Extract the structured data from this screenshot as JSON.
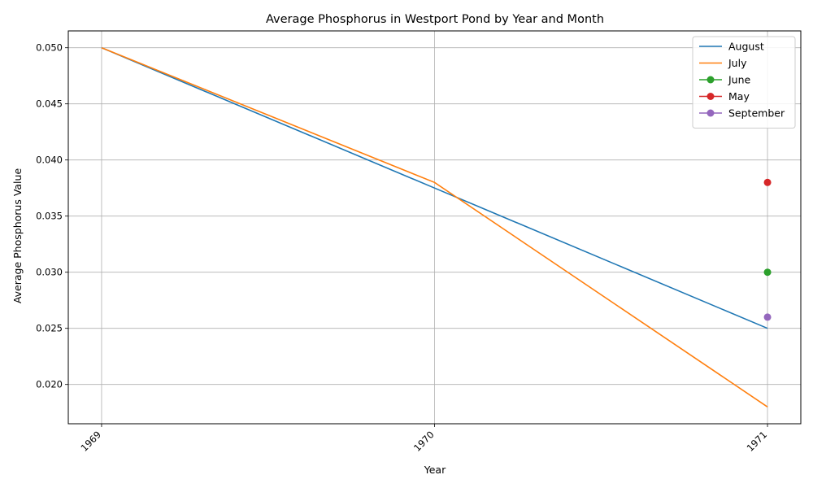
{
  "chart_data": {
    "type": "line",
    "title": "Average Phosphorus in Westport Pond by Year and Month",
    "xlabel": "Year",
    "ylabel": "Average Phosphorus Value",
    "x_ticks": [
      "1969",
      "1970",
      "1971"
    ],
    "y_ticks": [
      "0.020",
      "0.025",
      "0.030",
      "0.035",
      "0.040",
      "0.045",
      "0.050"
    ],
    "xlim": [
      1968.9,
      1971.1
    ],
    "ylim": [
      0.0165,
      0.0515
    ],
    "grid": true,
    "legend_position": "top-right",
    "series": [
      {
        "name": "August",
        "color": "#1f77b4",
        "marker": false,
        "x": [
          1969,
          1970,
          1971
        ],
        "y": [
          0.05,
          0.0375,
          0.025
        ]
      },
      {
        "name": "July",
        "color": "#ff7f0e",
        "marker": false,
        "x": [
          1969,
          1970,
          1971
        ],
        "y": [
          0.05,
          0.038,
          0.018
        ]
      },
      {
        "name": "June",
        "color": "#2ca02c",
        "marker": true,
        "x": [
          1971
        ],
        "y": [
          0.03
        ]
      },
      {
        "name": "May",
        "color": "#d62728",
        "marker": true,
        "x": [
          1971
        ],
        "y": [
          0.038
        ]
      },
      {
        "name": "September",
        "color": "#9467bd",
        "marker": true,
        "x": [
          1971
        ],
        "y": [
          0.026
        ]
      }
    ]
  }
}
